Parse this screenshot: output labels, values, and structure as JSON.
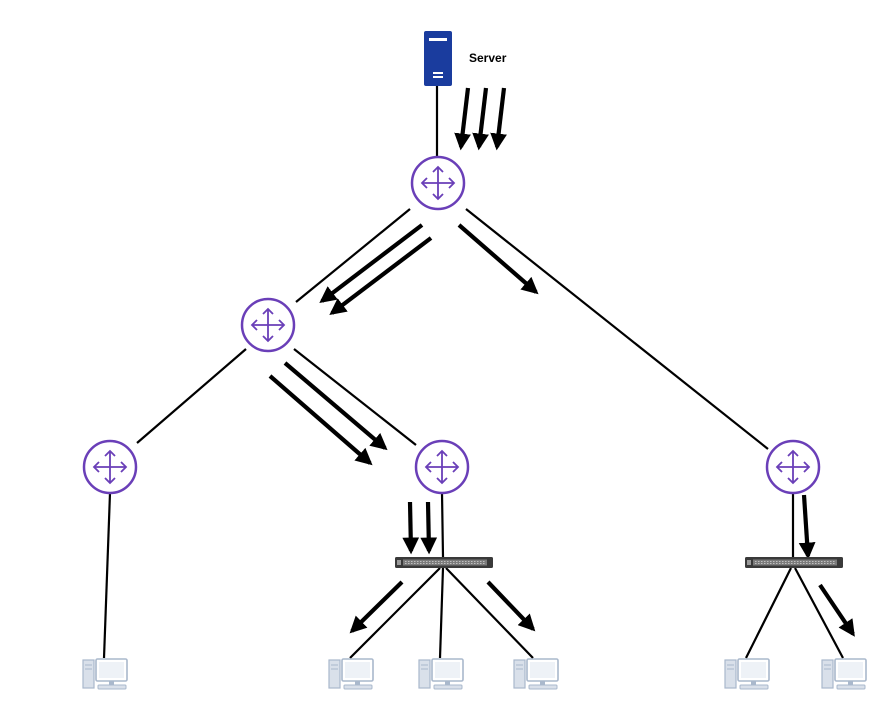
{
  "server": {
    "label": "Server",
    "icon": "server-icon"
  },
  "colors": {
    "router_stroke": "#6a3fb8",
    "router_fill": "#ffffff",
    "server_fill": "#1a3c9e",
    "link": "#000000",
    "arrow": "#000000",
    "switch_body": "#3a3a3a",
    "computer": "#a9b8cc"
  },
  "nodes": {
    "routers": [
      "router-core",
      "router-left",
      "router-leaf-1",
      "router-leaf-2",
      "router-leaf-3"
    ],
    "switches": [
      "switch-center",
      "switch-right"
    ],
    "computers": [
      "computer-1",
      "computer-2",
      "computer-3",
      "computer-4",
      "computer-5",
      "computer-6"
    ]
  }
}
